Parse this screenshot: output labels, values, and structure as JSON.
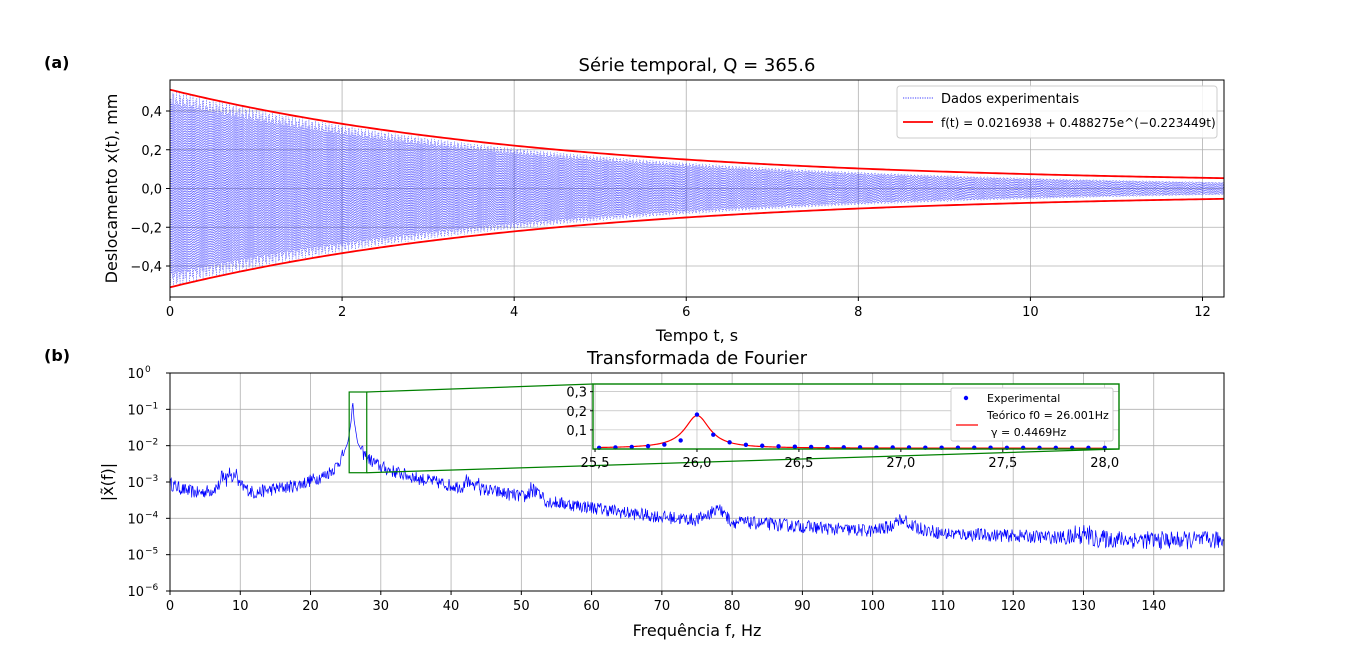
{
  "panel_labels": [
    "(a)",
    "(b)"
  ],
  "colors": {
    "signal": "#0000ff",
    "envelope": "#ff0000",
    "zoom": "#008000",
    "grid": "#b0b0b0"
  },
  "chart_data": [
    {
      "type": "line",
      "title": "Série temporal, Q = 365.6",
      "xlabel": "Tempo t, s",
      "ylabel": "Deslocamento x(t), mm",
      "xlim": [
        0,
        12.25
      ],
      "ylim": [
        -0.56,
        0.56
      ],
      "xticks": [
        0,
        2,
        4,
        6,
        8,
        10,
        12
      ],
      "xtick_labels": [
        "0",
        "2",
        "4",
        "6",
        "8",
        "10",
        "12"
      ],
      "yticks": [
        -0.4,
        -0.2,
        0.0,
        0.2,
        0.4
      ],
      "ytick_labels": [
        "−0,4",
        "−0,2",
        "0,0",
        "0,2",
        "0,4"
      ],
      "grid": true,
      "legend_position": "top-right",
      "series": [
        {
          "name": "Dados experimentais",
          "style": "dotted",
          "frequency_hz": 26.001,
          "amplitude_mm": 0.51,
          "decay_per_s": 0.223449,
          "offset_mm": 0.0216938
        },
        {
          "name": "f(t) = 0.0216938 + 0.488275e^(−0.223449t)",
          "style": "solid",
          "model": {
            "a": 0.0216938,
            "b": 0.488275,
            "k": 0.223449
          }
        }
      ]
    },
    {
      "type": "line",
      "title": "Transformada de Fourier",
      "xlabel": "Frequência f, Hz",
      "ylabel": "|x̃(f)|",
      "xlim": [
        0,
        150
      ],
      "ylim": [
        1e-06,
        1
      ],
      "yscale": "log",
      "xticks": [
        0,
        10,
        20,
        30,
        40,
        50,
        60,
        70,
        80,
        90,
        100,
        110,
        120,
        130,
        140
      ],
      "yticks": [
        1e-06,
        1e-05,
        0.0001,
        0.001,
        0.01,
        0.1,
        1
      ],
      "ytick_labels": [
        [
          "10",
          "−6"
        ],
        [
          "10",
          "−5"
        ],
        [
          "10",
          "−4"
        ],
        [
          "10",
          "−3"
        ],
        [
          "10",
          "−2"
        ],
        [
          "10",
          "−1"
        ],
        [
          "10",
          "0"
        ]
      ],
      "grid": true,
      "zoom_region": {
        "x": [
          25.5,
          28.0
        ],
        "y": [
          0.0018,
          0.3
        ]
      },
      "spectrum_points": [
        [
          0,
          0.0009
        ],
        [
          2,
          0.0006
        ],
        [
          4,
          0.0005
        ],
        [
          6,
          0.0006
        ],
        [
          8,
          0.0011
        ],
        [
          9,
          0.0013
        ],
        [
          10,
          0.0008
        ],
        [
          12,
          0.0005
        ],
        [
          14,
          0.0006
        ],
        [
          16,
          0.0007
        ],
        [
          18,
          0.0008
        ],
        [
          20,
          0.0011
        ],
        [
          22,
          0.0015
        ],
        [
          23.5,
          0.0025
        ],
        [
          24.5,
          0.005
        ],
        [
          25.3,
          0.012
        ],
        [
          25.8,
          0.05
        ],
        [
          26.0,
          0.18
        ],
        [
          26.2,
          0.05
        ],
        [
          26.7,
          0.012
        ],
        [
          27.5,
          0.006
        ],
        [
          28.5,
          0.004
        ],
        [
          30,
          0.0026
        ],
        [
          32,
          0.0019
        ],
        [
          35,
          0.0013
        ],
        [
          40,
          0.0008
        ],
        [
          43,
          0.0007
        ],
        [
          45,
          0.0006
        ],
        [
          50,
          0.0004
        ],
        [
          55,
          0.00027
        ],
        [
          60,
          0.0002
        ],
        [
          65,
          0.00014
        ],
        [
          70,
          0.00011
        ],
        [
          75,
          9e-05
        ],
        [
          78,
          0.00018
        ],
        [
          80,
          8e-05
        ],
        [
          85,
          7e-05
        ],
        [
          90,
          6e-05
        ],
        [
          95,
          5e-05
        ],
        [
          100,
          4.5e-05
        ],
        [
          104,
          7e-05
        ],
        [
          110,
          3.8e-05
        ],
        [
          120,
          3.3e-05
        ],
        [
          130,
          2.8e-05
        ],
        [
          140,
          2.5e-05
        ],
        [
          150,
          2.5e-05
        ]
      ],
      "noise_features": [
        {
          "x": 8.5,
          "peak": 0.002
        },
        {
          "x": 43,
          "peak": 0.0012
        },
        {
          "x": 52,
          "peak": 0.0007
        },
        {
          "x": 78,
          "peak": 0.0002
        },
        {
          "x": 104,
          "peak": 0.00011
        },
        {
          "x": 130,
          "peak": 5e-05
        }
      ]
    },
    {
      "type": "scatter",
      "title": "",
      "xlim": [
        25.49,
        28.07
      ],
      "ylim": [
        0.0,
        0.34
      ],
      "xticks": [
        25.5,
        26.0,
        26.5,
        27.0,
        27.5,
        28.0
      ],
      "xtick_labels": [
        "25,5",
        "26,0",
        "26,5",
        "27,0",
        "27,5",
        "28,0"
      ],
      "yticks": [
        0.1,
        0.2,
        0.3
      ],
      "ytick_labels": [
        "0,1",
        "0,2",
        "0,3"
      ],
      "legend_position": "top-right",
      "series": [
        {
          "name": "Experimental",
          "style": "markers",
          "x": [
            25.52,
            25.6,
            25.68,
            25.76,
            25.84,
            25.92,
            26.0,
            26.08,
            26.16,
            26.24,
            26.32,
            26.4,
            26.48,
            26.56,
            26.64,
            26.72,
            26.8,
            26.88,
            26.96,
            27.04,
            27.12,
            27.2,
            27.28,
            27.36,
            27.44,
            27.52,
            27.6,
            27.68,
            27.76,
            27.84,
            27.92,
            28.0
          ],
          "y": [
            0.006,
            0.008,
            0.011,
            0.015,
            0.023,
            0.045,
            0.18,
            0.075,
            0.035,
            0.022,
            0.017,
            0.014,
            0.012,
            0.011,
            0.01,
            0.009,
            0.009,
            0.008,
            0.008,
            0.008,
            0.007,
            0.007,
            0.007,
            0.007,
            0.007,
            0.006,
            0.006,
            0.006,
            0.006,
            0.006,
            0.006,
            0.006
          ]
        },
        {
          "name": "Teórico f0 = 26.001Hz\nγ = 0.4469Hz",
          "style": "solid",
          "model": {
            "f0": 26.001,
            "gamma": 0.4469,
            "peak": 0.175,
            "base": 0.004
          }
        }
      ]
    }
  ]
}
